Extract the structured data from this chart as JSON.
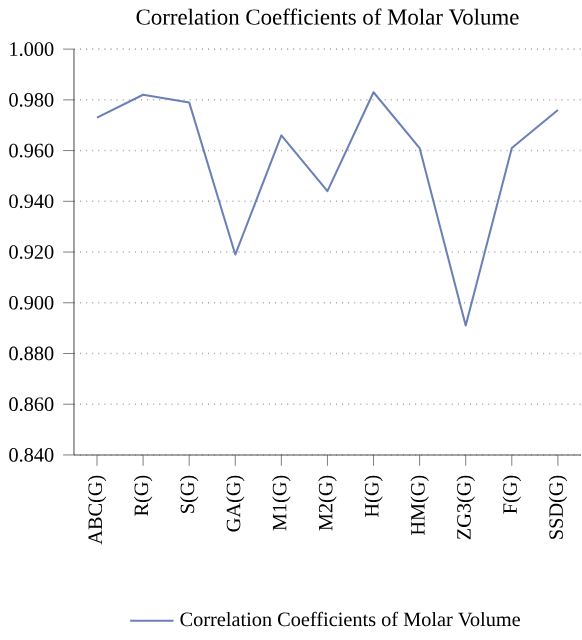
{
  "chart_data": {
    "type": "line",
    "title": "Correlation Coefficients of Molar Volume",
    "categories": [
      "ABC(G)",
      "R(G)",
      "S(G)",
      "GA(G)",
      "M1(G)",
      "M2(G)",
      "H(G)",
      "HM(G)",
      "ZG3(G)",
      "F(G)",
      "SSD(G)"
    ],
    "series": [
      {
        "name": "Correlation Coefficients of Molar Volume",
        "color": "#6a80b6",
        "values": [
          0.973,
          0.982,
          0.979,
          0.919,
          0.966,
          0.944,
          0.983,
          0.961,
          0.891,
          0.961,
          0.976
        ]
      }
    ],
    "ylim": [
      0.84,
      1.0
    ],
    "yticks": [
      {
        "value": 0.84,
        "label": "0.840"
      },
      {
        "value": 0.86,
        "label": "0.860"
      },
      {
        "value": 0.88,
        "label": "0.880"
      },
      {
        "value": 0.9,
        "label": "0.900"
      },
      {
        "value": 0.92,
        "label": "0.920"
      },
      {
        "value": 0.94,
        "label": "0.940"
      },
      {
        "value": 0.96,
        "label": "0.960"
      },
      {
        "value": 0.98,
        "label": "0.980"
      },
      {
        "value": 1.0,
        "label": "1.000"
      }
    ],
    "grid": "y",
    "legend": "bottom",
    "marker": "none",
    "line_style": "solid"
  }
}
